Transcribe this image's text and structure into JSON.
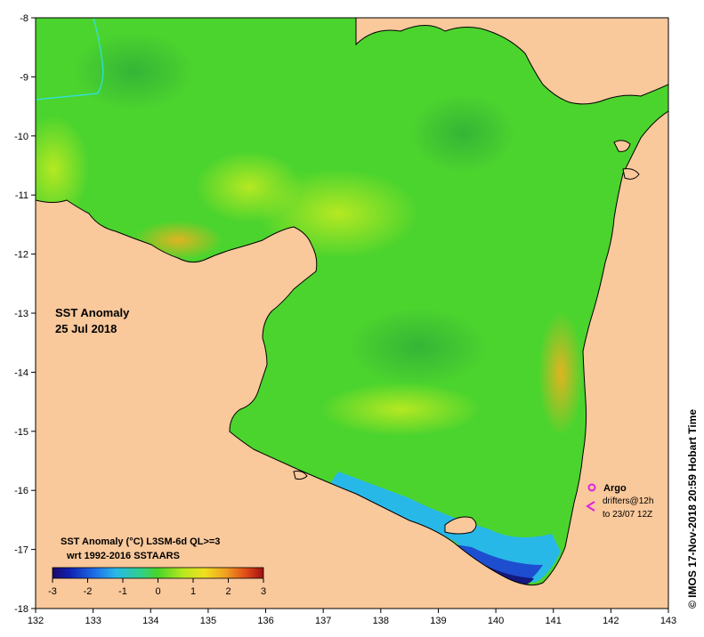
{
  "map": {
    "title_line1": "SST Anomaly",
    "title_line2": "25 Jul 2018",
    "lon_ticks": [
      "132",
      "133",
      "134",
      "135",
      "136",
      "137",
      "138",
      "139",
      "140",
      "141",
      "142",
      "143"
    ],
    "lat_ticks": [
      "-8",
      "-9",
      "-10",
      "-11",
      "-12",
      "-13",
      "-14",
      "-15",
      "-16",
      "-17",
      "-18"
    ],
    "lon_range": [
      132,
      143
    ],
    "lat_range": [
      -18,
      -8
    ],
    "land_color": "#f9c89b",
    "sea_color": "#4cd42e"
  },
  "legend": {
    "line1": "SST Anomaly (°C) L3SM-6d QL>=3",
    "line2": "wrt 1992-2016 SSTAARS",
    "ticks": [
      "-3",
      "-2",
      "-1",
      "0",
      "1",
      "2",
      "3"
    ],
    "range": [
      -3,
      3
    ]
  },
  "markers": {
    "argo_label": "Argo",
    "argo_color": "#e020e0",
    "drifters_line1": "drifters@12h",
    "drifters_line2": "to 23/07 12Z"
  },
  "credit": "© IMOS 17-Nov-2018 20:59 Hobart Time"
}
